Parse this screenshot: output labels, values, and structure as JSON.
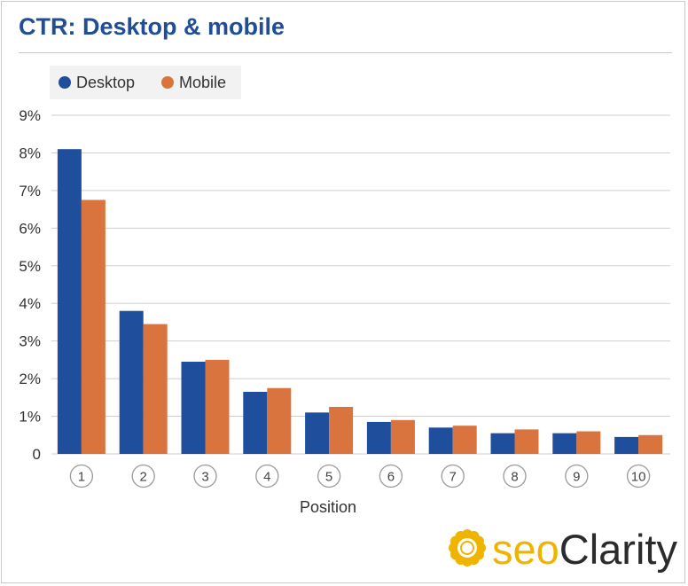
{
  "title": "CTR: Desktop & mobile",
  "logo": {
    "prefix": "seo",
    "suffix": "Clarity"
  },
  "colors": {
    "desktop": "#1f4e9d",
    "mobile": "#d9743e",
    "title": "#1f4e96",
    "logo_accent": "#f0b400"
  },
  "chart_data": {
    "type": "bar",
    "title": "CTR: Desktop & mobile",
    "xlabel": "Position",
    "ylabel": "",
    "categories": [
      "1",
      "2",
      "3",
      "4",
      "5",
      "6",
      "7",
      "8",
      "9",
      "10"
    ],
    "ylim": [
      0,
      9
    ],
    "yticks": [
      "9%",
      "8%",
      "7%",
      "6%",
      "5%",
      "4%",
      "3%",
      "2%",
      "1%",
      "0"
    ],
    "grid": true,
    "legend": "top-left",
    "series": [
      {
        "name": "Desktop",
        "values": [
          8.1,
          3.8,
          2.45,
          1.65,
          1.1,
          0.85,
          0.7,
          0.55,
          0.55,
          0.45
        ]
      },
      {
        "name": "Mobile",
        "values": [
          6.75,
          3.45,
          2.5,
          1.75,
          1.25,
          0.9,
          0.75,
          0.65,
          0.6,
          0.5
        ]
      }
    ]
  }
}
